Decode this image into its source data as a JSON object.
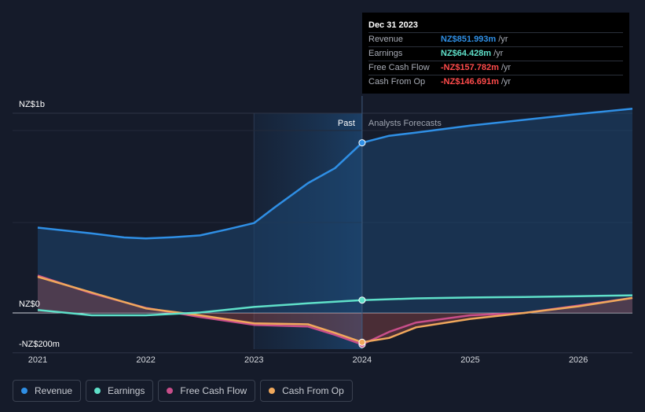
{
  "chart_data": {
    "type": "line",
    "title": "",
    "xlabel": "",
    "ylabel": "",
    "x_range": [
      2021.0,
      2026.5
    ],
    "ylim": [
      -200,
      1000
    ],
    "y_tick_labels": [
      {
        "value": 1000,
        "label": "NZ$1b"
      },
      {
        "value": 0,
        "label": "NZ$0"
      },
      {
        "value": -200,
        "label": "-NZ$200m"
      }
    ],
    "x_ticks": [
      {
        "value": 2021,
        "label": "2021"
      },
      {
        "value": 2022,
        "label": "2022"
      },
      {
        "value": 2023,
        "label": "2023"
      },
      {
        "value": 2024,
        "label": "2024"
      },
      {
        "value": 2025,
        "label": "2025"
      },
      {
        "value": 2026,
        "label": "2026"
      }
    ],
    "past_label": "Past",
    "forecast_label": "Analysts Forecasts",
    "divider_x": 2024.0,
    "shade_start_x": 2023.0,
    "series": [
      {
        "name": "Revenue",
        "color": "#2f8fe5",
        "points": [
          [
            2021.0,
            427
          ],
          [
            2021.5,
            398
          ],
          [
            2021.8,
            378
          ],
          [
            2022.0,
            373
          ],
          [
            2022.25,
            379
          ],
          [
            2022.5,
            388
          ],
          [
            2022.75,
            418
          ],
          [
            2023.0,
            450
          ],
          [
            2023.2,
            532
          ],
          [
            2023.5,
            650
          ],
          [
            2023.75,
            725
          ],
          [
            2024.0,
            852
          ],
          [
            2024.25,
            887
          ],
          [
            2024.5,
            903
          ],
          [
            2025.0,
            938
          ],
          [
            2025.5,
            967
          ],
          [
            2026.0,
            996
          ],
          [
            2026.5,
            1023
          ]
        ]
      },
      {
        "name": "Earnings",
        "color": "#5fe0c9",
        "points": [
          [
            2021.0,
            15
          ],
          [
            2021.5,
            -12
          ],
          [
            2022.0,
            -12
          ],
          [
            2022.5,
            2
          ],
          [
            2023.0,
            30
          ],
          [
            2023.5,
            48
          ],
          [
            2024.0,
            64
          ],
          [
            2024.5,
            73
          ],
          [
            2025.0,
            77
          ],
          [
            2025.5,
            80
          ],
          [
            2026.0,
            84
          ],
          [
            2026.5,
            88
          ]
        ]
      },
      {
        "name": "Free Cash Flow",
        "color": "#c84e8a",
        "points": [
          [
            2021.0,
            187
          ],
          [
            2021.5,
            98
          ],
          [
            2022.0,
            25
          ],
          [
            2022.5,
            -20
          ],
          [
            2023.0,
            -60
          ],
          [
            2023.5,
            -68
          ],
          [
            2023.75,
            -110
          ],
          [
            2024.0,
            -157.8
          ],
          [
            2024.25,
            -95
          ],
          [
            2024.5,
            -48
          ],
          [
            2025.0,
            -12
          ],
          [
            2025.5,
            0
          ],
          [
            2026.0,
            37
          ],
          [
            2026.5,
            75
          ]
        ]
      },
      {
        "name": "Cash From Op",
        "color": "#f0a85c",
        "points": [
          [
            2021.0,
            181
          ],
          [
            2021.5,
            102
          ],
          [
            2022.0,
            23
          ],
          [
            2022.5,
            -12
          ],
          [
            2023.0,
            -52
          ],
          [
            2023.5,
            -57
          ],
          [
            2023.75,
            -100
          ],
          [
            2024.0,
            -146.7
          ],
          [
            2024.25,
            -125
          ],
          [
            2024.5,
            -72
          ],
          [
            2025.0,
            -30
          ],
          [
            2025.5,
            0
          ],
          [
            2026.0,
            33
          ],
          [
            2026.5,
            75
          ]
        ]
      }
    ]
  },
  "tooltip": {
    "date": "Dec 31 2023",
    "rows": [
      {
        "label": "Revenue",
        "value": "NZ$851.993m",
        "unit": "/yr",
        "color": "#2f8fe5"
      },
      {
        "label": "Earnings",
        "value": "NZ$64.428m",
        "unit": "/yr",
        "color": "#5fe0c9"
      },
      {
        "label": "Free Cash Flow",
        "value": "-NZ$157.782m",
        "unit": "/yr",
        "color": "#ff4b4b"
      },
      {
        "label": "Cash From Op",
        "value": "-NZ$146.691m",
        "unit": "/yr",
        "color": "#ff4b4b"
      }
    ]
  },
  "legend": [
    {
      "label": "Revenue",
      "color": "#2f8fe5"
    },
    {
      "label": "Earnings",
      "color": "#5fe0c9"
    },
    {
      "label": "Free Cash Flow",
      "color": "#c84e8a"
    },
    {
      "label": "Cash From Op",
      "color": "#f0a85c"
    }
  ]
}
